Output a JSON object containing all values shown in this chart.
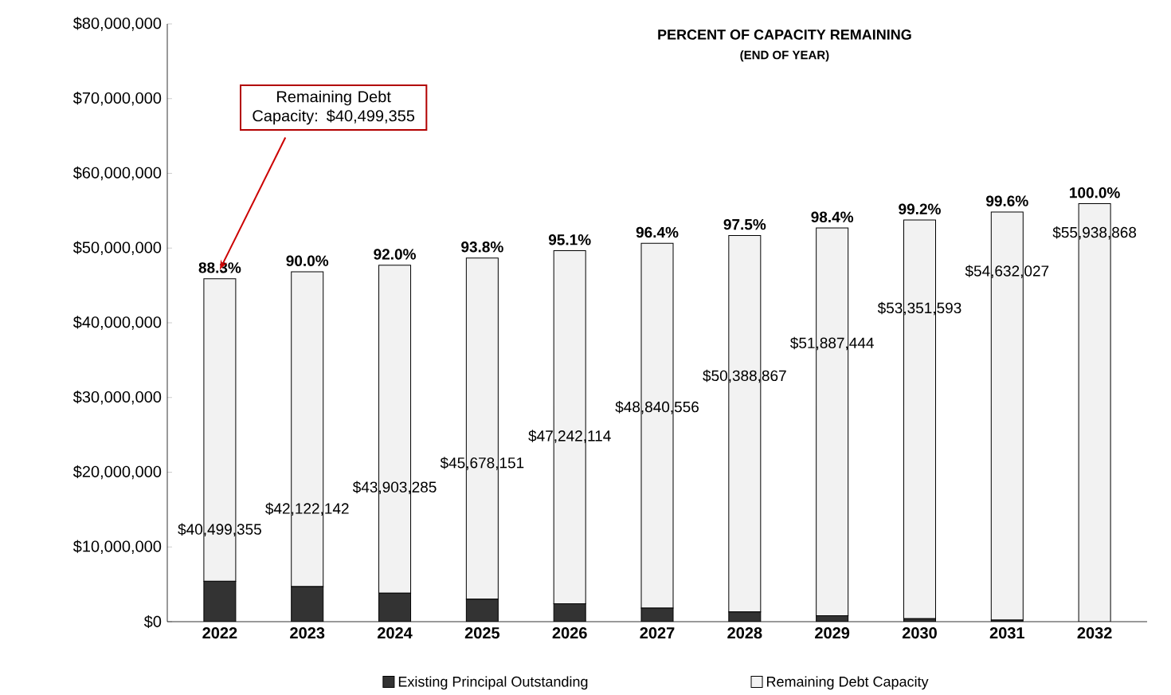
{
  "chart_data": {
    "type": "bar",
    "stacked": true,
    "title": "PERCENT OF CAPACITY REMAINING",
    "subtitle": "(END OF YEAR)",
    "categories": [
      "2022",
      "2023",
      "2024",
      "2025",
      "2026",
      "2027",
      "2028",
      "2029",
      "2030",
      "2031",
      "2032"
    ],
    "series": [
      {
        "name": "Existing Principal Outstanding",
        "color": "#333333",
        "values": [
          5400000,
          4700000,
          3800000,
          3000000,
          2400000,
          1800000,
          1300000,
          800000,
          400000,
          200000,
          0
        ]
      },
      {
        "name": "Remaining Debt Capacity",
        "color": "#f2f2f2",
        "values": [
          40499355,
          42122142,
          43903285,
          45678151,
          47242114,
          48840556,
          50388867,
          51887444,
          53351593,
          54632027,
          55938868
        ],
        "value_labels": [
          "$40,499,355",
          "$42,122,142",
          "$43,903,285",
          "$45,678,151",
          "$47,242,114",
          "$48,840,556",
          "$50,388,867",
          "$51,887,444",
          "$53,351,593",
          "$54,632,027",
          "$55,938,868"
        ]
      }
    ],
    "ylim": [
      0,
      80000000
    ],
    "yticks": [
      {
        "value": 0,
        "label": "$0"
      },
      {
        "value": 10000000,
        "label": "$10,000,000"
      },
      {
        "value": 20000000,
        "label": "$20,000,000"
      },
      {
        "value": 30000000,
        "label": "$30,000,000"
      },
      {
        "value": 40000000,
        "label": "$40,000,000"
      },
      {
        "value": 50000000,
        "label": "$50,000,000"
      },
      {
        "value": 60000000,
        "label": "$60,000,000"
      },
      {
        "value": 70000000,
        "label": "$70,000,000"
      },
      {
        "value": 80000000,
        "label": "$80,000,000"
      }
    ],
    "grid": false,
    "legend": "bottom",
    "annotations": [
      "Remaining Debt Capacity: $40,499,355",
      {
        "text": "88.3%",
        "x": "2022",
        "y": 45899355
      },
      {
        "text": "90.0%",
        "x": "2023",
        "y": 46822142
      },
      {
        "text": "92.0%",
        "x": "2024",
        "y": 47703285
      },
      {
        "text": "93.8%",
        "x": "2025",
        "y": 48678151
      },
      {
        "text": "95.1%",
        "x": "2026",
        "y": 49642114
      },
      {
        "text": "96.4%",
        "x": "2027",
        "y": 50640556
      },
      {
        "text": "97.5%",
        "x": "2028",
        "y": 51688867
      },
      {
        "text": "98.4%",
        "x": "2029",
        "y": 52687444
      },
      {
        "text": "99.2%",
        "x": "2030",
        "y": 53751593
      },
      {
        "text": "99.6%",
        "x": "2031",
        "y": 54832027
      },
      {
        "text": "100.0%",
        "x": "2032",
        "y": 55938868
      }
    ]
  }
}
